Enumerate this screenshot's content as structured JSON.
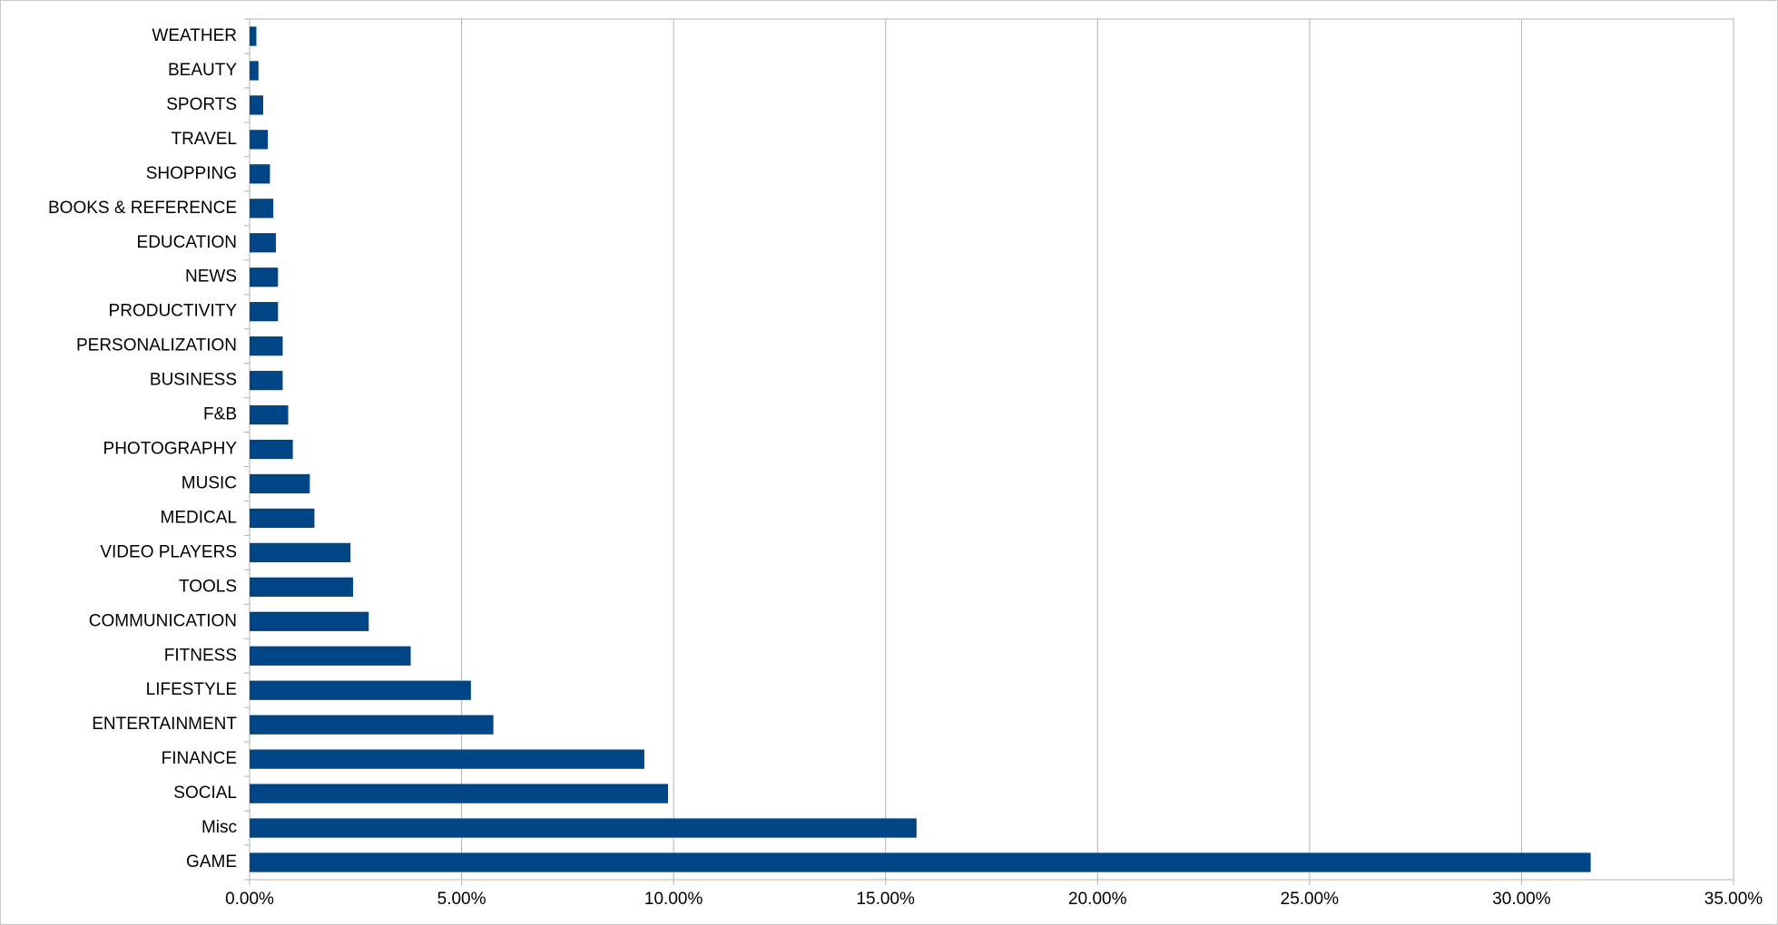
{
  "chart_data": {
    "type": "hbar",
    "categories": [
      "GAME",
      "Misc",
      "SOCIAL",
      "FINANCE",
      "ENTERTAINMENT",
      "LIFESTYLE",
      "FITNESS",
      "COMMUNICATION",
      "TOOLS",
      "VIDEO PLAYERS",
      "MEDICAL",
      "MUSIC ",
      "PHOTOGRAPHY",
      "F&B",
      "BUSINESS",
      "PERSONALIZATION",
      "PRODUCTIVITY",
      "NEWS",
      "EDUCATION",
      "BOOKS & REFERENCE",
      "SHOPPING",
      "TRAVEL",
      "SPORTS",
      "BEAUTY",
      "WEATHER"
    ],
    "values": [
      31.63,
      15.73,
      9.87,
      9.31,
      5.75,
      5.22,
      3.8,
      2.81,
      2.44,
      2.38,
      1.53,
      1.42,
      1.02,
      0.91,
      0.78,
      0.78,
      0.67,
      0.67,
      0.62,
      0.56,
      0.48,
      0.43,
      0.32,
      0.21,
      0.16
    ],
    "color": "#004586",
    "xlim": [
      0,
      35
    ],
    "xticks": [
      {
        "value": 0,
        "label": "0.00%"
      },
      {
        "value": 5,
        "label": "5.00%"
      },
      {
        "value": 10,
        "label": "10.00%"
      },
      {
        "value": 15,
        "label": "15.00%"
      },
      {
        "value": 20,
        "label": "20.00%"
      },
      {
        "value": 25,
        "label": "25.00%"
      },
      {
        "value": 30,
        "label": "30.00%"
      },
      {
        "value": 35,
        "label": "35.00%"
      }
    ],
    "grid": true
  }
}
